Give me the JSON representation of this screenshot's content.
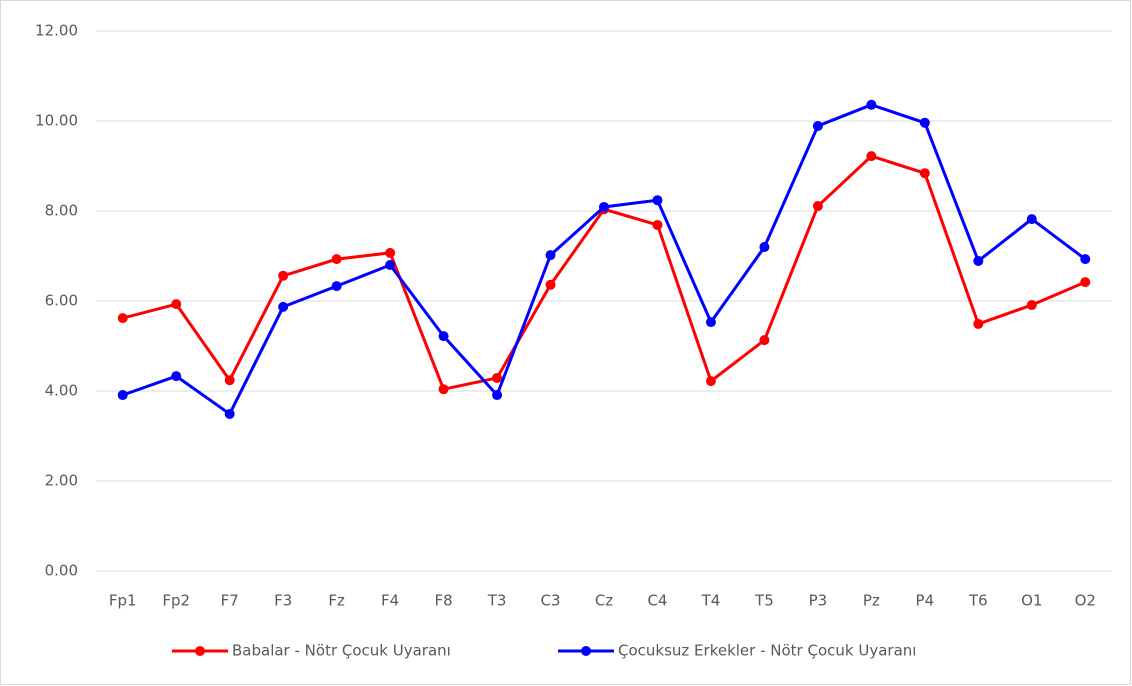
{
  "chart_data": {
    "type": "line",
    "categories": [
      "Fp1",
      "Fp2",
      "F7",
      "F3",
      "Fz",
      "F4",
      "F8",
      "T3",
      "C3",
      "Cz",
      "C4",
      "T4",
      "T5",
      "P3",
      "Pz",
      "P4",
      "T6",
      "O1",
      "O2"
    ],
    "series": [
      {
        "name": "Babalar - Nötr Çocuk Uyaranı",
        "color": "#ff0000",
        "values": [
          5.62,
          5.93,
          4.24,
          6.56,
          6.93,
          7.07,
          4.04,
          4.29,
          6.36,
          8.04,
          7.69,
          4.22,
          5.13,
          8.11,
          9.22,
          8.84,
          5.49,
          5.91,
          6.42
        ]
      },
      {
        "name": "Çocuksuz Erkekler - Nötr Çocuk Uyaranı",
        "color": "#0000ff",
        "values": [
          3.91,
          4.33,
          3.49,
          5.87,
          6.33,
          6.8,
          5.22,
          3.91,
          7.02,
          8.09,
          8.24,
          5.53,
          7.2,
          9.89,
          10.36,
          9.96,
          6.89,
          7.82,
          6.93
        ]
      }
    ],
    "ylim": [
      0,
      12
    ],
    "yticks": [
      {
        "value": 0,
        "label": "0.00"
      },
      {
        "value": 2,
        "label": "2.00"
      },
      {
        "value": 4,
        "label": "4.00"
      },
      {
        "value": 6,
        "label": "6.00"
      },
      {
        "value": 8,
        "label": "8.00"
      },
      {
        "value": 10,
        "label": "10.00"
      },
      {
        "value": 12,
        "label": "12.00"
      }
    ],
    "grid": true,
    "legend": "bottom"
  }
}
